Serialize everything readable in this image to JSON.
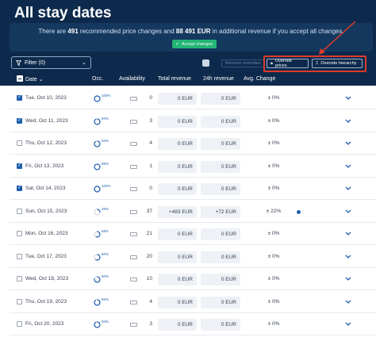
{
  "header": {
    "title": "All stay dates",
    "banner": {
      "prefix": "There are",
      "count": "491",
      "middle": "recommended price changes and",
      "revenue": "88 491 EUR",
      "suffix": "in additional revenue if you accept all changes.",
      "accept_label": "Accept changes"
    }
  },
  "toolbar": {
    "filter_label": "Filter (0)",
    "remove_label": "Remove overrides",
    "override_prices_label": "Override prices",
    "override_hierarchy_label": "Override hierarchy"
  },
  "columns": {
    "date": "Date",
    "occ": "Occ.",
    "availability": "Availability",
    "total_revenue": "Total revenue",
    "revenue_24h": "24h revenue",
    "avg_change": "Avg. Change"
  },
  "rows": [
    {
      "checked": true,
      "date": "Tue, Oct 10, 2023",
      "occ": "100%",
      "occ_pct": 100,
      "avail": "0",
      "total": "0 EUR",
      "h24": "0 EUR",
      "avg": "± 0%",
      "dot": false
    },
    {
      "checked": true,
      "date": "Wed, Oct 11, 2023",
      "occ": "94%",
      "occ_pct": 94,
      "avail": "3",
      "total": "0 EUR",
      "h24": "0 EUR",
      "avg": "± 0%",
      "dot": false
    },
    {
      "checked": false,
      "date": "Thu, Oct 12, 2023",
      "occ": "92%",
      "occ_pct": 92,
      "avail": "4",
      "total": "0 EUR",
      "h24": "0 EUR",
      "avg": "± 0%",
      "dot": false
    },
    {
      "checked": true,
      "date": "Fri, Oct 13, 2023",
      "occ": "98%",
      "occ_pct": 98,
      "avail": "1",
      "total": "0 EUR",
      "h24": "0 EUR",
      "avg": "± 0%",
      "dot": false
    },
    {
      "checked": true,
      "date": "Sat, Oct 14, 2023",
      "occ": "100%",
      "occ_pct": 100,
      "avail": "0",
      "total": "0 EUR",
      "h24": "0 EUR",
      "avg": "± 0%",
      "dot": false
    },
    {
      "checked": false,
      "date": "Sun, Oct 15, 2023",
      "occ": "26%",
      "occ_pct": 26,
      "avail": "37",
      "total": "+483 EUR",
      "h24": "+72 EUR",
      "avg": "± 22%",
      "dot": true
    },
    {
      "checked": false,
      "date": "Mon, Oct 16, 2023",
      "occ": "58%",
      "occ_pct": 58,
      "avail": "21",
      "total": "0 EUR",
      "h24": "0 EUR",
      "avg": "± 0%",
      "dot": false
    },
    {
      "checked": false,
      "date": "Tue, Oct 17, 2023",
      "occ": "60%",
      "occ_pct": 60,
      "avail": "20",
      "total": "0 EUR",
      "h24": "0 EUR",
      "avg": "± 0%",
      "dot": false
    },
    {
      "checked": false,
      "date": "Wed, Oct 18, 2023",
      "occ": "80%",
      "occ_pct": 80,
      "avail": "10",
      "total": "0 EUR",
      "h24": "0 EUR",
      "avg": "± 0%",
      "dot": false
    },
    {
      "checked": false,
      "date": "Thu, Oct 19, 2023",
      "occ": "92%",
      "occ_pct": 92,
      "avail": "4",
      "total": "0 EUR",
      "h24": "0 EUR",
      "avg": "± 0%",
      "dot": false
    },
    {
      "checked": false,
      "date": "Fri, Oct 20, 2023",
      "occ": "94%",
      "occ_pct": 94,
      "avail": "3",
      "total": "0 EUR",
      "h24": "0 EUR",
      "avg": "± 0%",
      "dot": false
    }
  ],
  "colors": {
    "navy": "#0d2a4c",
    "accent": "#1e5fae",
    "accept_green": "#22b573",
    "highlight_red": "#e03a2b"
  }
}
